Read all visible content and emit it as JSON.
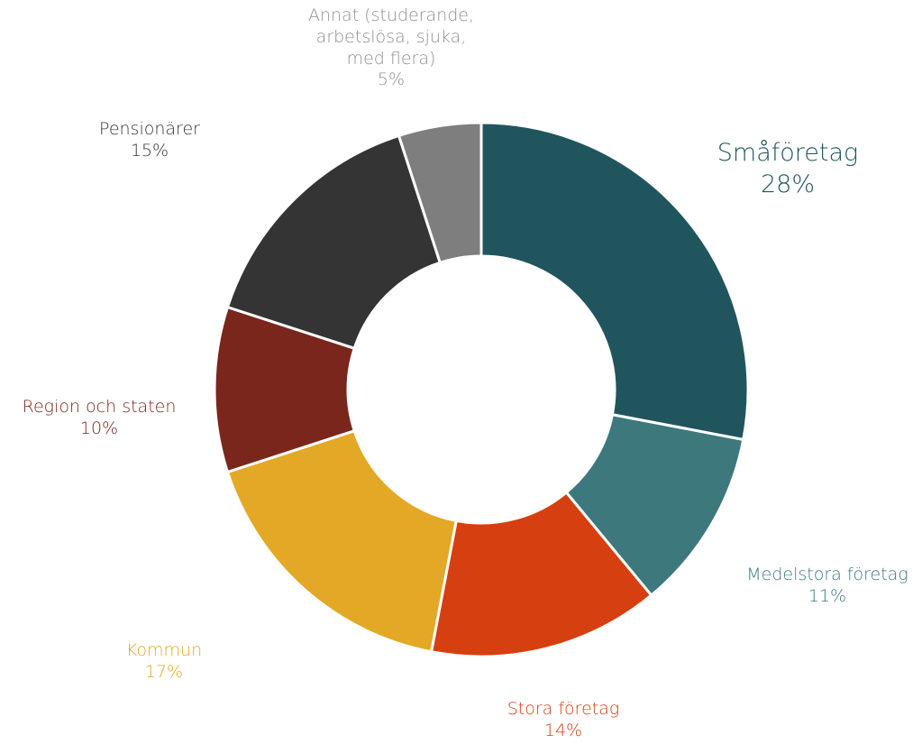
{
  "chart_data": {
    "type": "pie",
    "variant": "donut",
    "title": "",
    "slices": [
      {
        "label": "Småföretag",
        "value_label": "28%",
        "value": 28,
        "color": "#20555e"
      },
      {
        "label": "Medelstora företag",
        "value_label": "11%",
        "value": 11,
        "color": "#3c787c"
      },
      {
        "label": "Stora företag",
        "value_label": "14%",
        "value": 14,
        "color": "#d63f0f"
      },
      {
        "label": "Kommun",
        "value_label": "17%",
        "value": 17,
        "color": "#e3a826"
      },
      {
        "label": "Region och staten",
        "value_label": "10%",
        "value": 10,
        "color": "#7a261d"
      },
      {
        "label": "Pensionärer",
        "value_label": "15%",
        "value": 15,
        "color": "#343434"
      },
      {
        "label": "Annat (studerande,\narbetslösa, sjuka,\nmed flera)",
        "value_label": "5%",
        "value": 5,
        "color": "#7e7e7e"
      }
    ],
    "label_colors": {
      "Småföretag": "#20555e",
      "Medelstora företag": "#3c787c",
      "Stora företag": "#d63f0f",
      "Kommun": "#e3a826",
      "Region och staten": "#7a261d",
      "Pensionärer": "#343434",
      "Annat (studerande,\narbetslösa, sjuka,\nmed flera)": "#8f8f8f"
    }
  }
}
